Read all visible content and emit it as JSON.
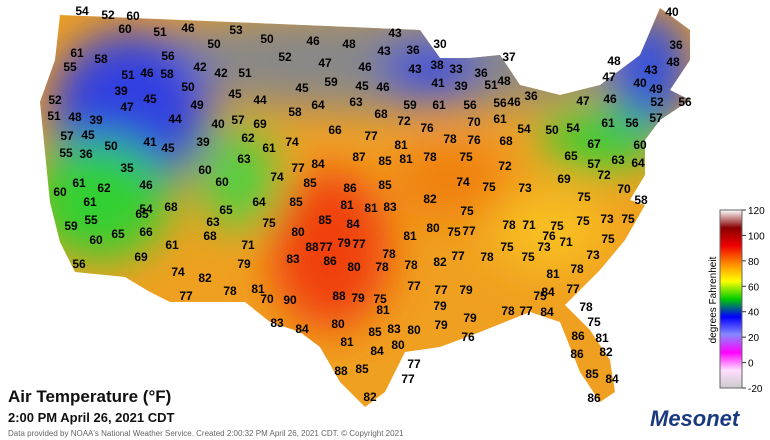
{
  "title": "Air Temperature (°F)",
  "timestamp": "2:00 PM April 26, 2021 CDT",
  "credit": "Data provided by NOAA's National Weather Service. Created 2:00:32 PM April 26, 2021 CDT. © Copyright 2021",
  "brand": "Mesonet",
  "legend": {
    "title": "degrees Fahrenheit",
    "ticks": [
      120,
      100,
      80,
      60,
      40,
      20,
      0,
      -20
    ]
  },
  "stations": [
    54,
    52,
    60,
    51,
    46,
    53,
    50,
    46,
    48,
    43,
    40,
    60,
    50,
    30,
    36,
    37,
    61,
    58,
    56,
    52,
    43,
    48,
    48,
    42,
    42,
    51,
    47,
    46,
    43,
    36,
    38,
    33,
    36,
    48,
    47,
    43,
    55,
    51,
    46,
    58,
    50,
    45,
    44,
    45,
    59,
    45,
    46,
    41,
    39,
    51,
    46,
    36,
    47,
    46,
    40,
    49,
    52,
    39,
    45,
    49,
    40,
    57,
    58,
    64,
    63,
    59,
    61,
    56,
    56,
    52,
    56,
    51,
    48,
    39,
    47,
    44,
    69,
    68,
    72,
    76,
    70,
    61,
    57,
    57,
    45,
    41,
    39,
    62,
    61,
    74,
    66,
    77,
    78,
    76,
    54,
    50,
    54,
    61,
    56,
    60,
    55,
    36,
    50,
    45,
    63,
    77,
    84,
    87,
    85,
    81,
    81,
    78,
    75,
    68,
    72,
    65,
    57,
    67,
    63,
    64,
    74,
    85,
    86,
    85,
    82,
    74,
    75,
    73,
    69,
    72,
    35,
    46,
    60,
    60,
    61,
    62,
    75,
    70,
    60,
    61,
    55,
    54,
    68,
    65,
    64,
    85,
    85,
    81,
    84,
    81,
    83,
    75,
    78,
    71,
    75,
    75,
    73,
    75,
    58,
    65,
    63,
    75,
    80,
    77,
    79,
    81,
    80,
    75,
    77,
    76,
    71,
    75,
    59,
    60,
    65,
    66,
    68,
    71,
    88,
    77,
    78,
    78,
    82,
    77,
    78,
    75,
    73,
    56,
    69,
    61,
    79,
    83,
    86,
    80,
    78,
    75,
    81,
    78,
    73,
    74,
    82,
    78,
    81,
    77,
    77,
    79,
    84,
    77,
    77,
    70,
    90,
    88,
    79,
    75,
    79,
    75,
    83,
    84,
    80,
    81,
    85,
    83,
    80,
    79,
    79,
    78,
    77,
    84,
    78,
    75,
    86,
    81,
    86,
    82,
    81,
    84,
    80,
    76,
    77,
    77,
    88,
    85,
    85,
    84,
    82,
    86
  ]
}
